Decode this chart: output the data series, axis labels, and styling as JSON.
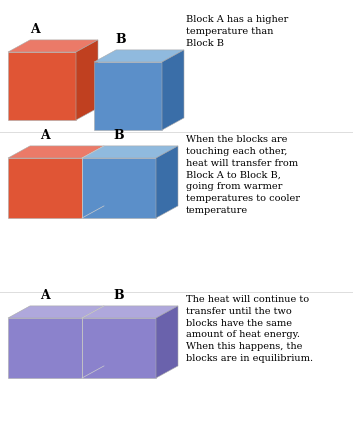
{
  "background_color": "#ffffff",
  "row1": {
    "label_a": "A",
    "label_b": "B",
    "block_a_color_front": "#e05535",
    "block_a_color_top": "#eb7a68",
    "block_a_color_side": "#c04020",
    "block_b_color_front": "#5b8fc9",
    "block_b_color_top": "#90bade",
    "block_b_color_side": "#3a6ea8",
    "text": "Block A has a higher\ntemperature than\nBlock B"
  },
  "row2": {
    "label_a": "A",
    "label_b": "B",
    "front_a": "#e05535",
    "top_a": "#eb7a68",
    "front_b": "#5b8fc9",
    "top_b": "#90bade",
    "side_b": "#3a6ea8",
    "text": "When the blocks are\ntouching each other,\nheat will transfer from\nBlock A to Block B,\ngoing from warmer\ntemperatures to cooler\ntemperature"
  },
  "row3": {
    "label_a": "A",
    "label_b": "B",
    "front": "#8b82cc",
    "top": "#afa8dc",
    "side": "#6a62ac",
    "text": "The heat will continue to\ntransfer until the two\nblocks have the same\namount of heat energy.\nWhen this happens, the\nblocks are in equilibrium."
  },
  "label_fontsize": 9,
  "text_fontsize": 7.0
}
